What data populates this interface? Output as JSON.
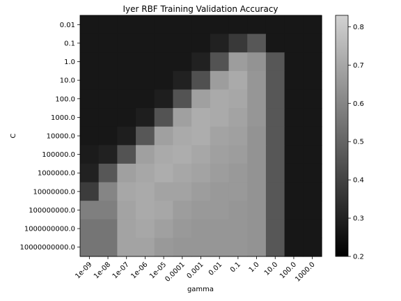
{
  "chart_data": {
    "type": "heatmap",
    "title": "Iyer RBF Training Validation Accuracy",
    "xlabel": "gamma",
    "ylabel": "C",
    "x_categories": [
      "1e-09",
      "1e-08",
      "1e-07",
      "1e-06",
      "1e-05",
      "0.0001",
      "0.001",
      "0.01",
      "0.1",
      "1.0",
      "10.0",
      "100.0",
      "1000.0"
    ],
    "y_categories": [
      "0.01",
      "0.1",
      "1.0",
      "10.0",
      "100.0",
      "1000.0",
      "10000.0",
      "100000.0",
      "1000000.0",
      "10000000.0",
      "100000000.0",
      "1000000000.0",
      "10000000000.0"
    ],
    "values": [
      [
        0.27,
        0.27,
        0.27,
        0.27,
        0.27,
        0.27,
        0.27,
        0.27,
        0.27,
        0.27,
        0.27,
        0.27,
        0.27
      ],
      [
        0.27,
        0.27,
        0.27,
        0.27,
        0.27,
        0.27,
        0.27,
        0.3,
        0.37,
        0.46,
        0.27,
        0.27,
        0.27
      ],
      [
        0.27,
        0.27,
        0.27,
        0.27,
        0.27,
        0.27,
        0.3,
        0.45,
        0.67,
        0.64,
        0.46,
        0.27,
        0.27
      ],
      [
        0.27,
        0.27,
        0.27,
        0.27,
        0.27,
        0.3,
        0.44,
        0.67,
        0.71,
        0.65,
        0.46,
        0.27,
        0.27
      ],
      [
        0.27,
        0.27,
        0.27,
        0.27,
        0.29,
        0.45,
        0.68,
        0.71,
        0.7,
        0.65,
        0.46,
        0.27,
        0.27
      ],
      [
        0.27,
        0.27,
        0.27,
        0.29,
        0.45,
        0.68,
        0.72,
        0.71,
        0.69,
        0.65,
        0.46,
        0.27,
        0.27
      ],
      [
        0.27,
        0.27,
        0.29,
        0.46,
        0.68,
        0.71,
        0.72,
        0.69,
        0.68,
        0.64,
        0.46,
        0.27,
        0.27
      ],
      [
        0.28,
        0.3,
        0.45,
        0.68,
        0.71,
        0.72,
        0.7,
        0.68,
        0.67,
        0.64,
        0.46,
        0.27,
        0.27
      ],
      [
        0.3,
        0.46,
        0.68,
        0.7,
        0.72,
        0.7,
        0.69,
        0.67,
        0.66,
        0.64,
        0.46,
        0.27,
        0.27
      ],
      [
        0.38,
        0.6,
        0.7,
        0.71,
        0.69,
        0.69,
        0.67,
        0.66,
        0.66,
        0.64,
        0.46,
        0.27,
        0.27
      ],
      [
        0.58,
        0.58,
        0.69,
        0.71,
        0.7,
        0.67,
        0.66,
        0.66,
        0.65,
        0.64,
        0.46,
        0.27,
        0.27
      ],
      [
        0.55,
        0.55,
        0.69,
        0.7,
        0.68,
        0.66,
        0.65,
        0.65,
        0.65,
        0.64,
        0.46,
        0.27,
        0.27
      ],
      [
        0.55,
        0.55,
        0.69,
        0.69,
        0.66,
        0.65,
        0.65,
        0.65,
        0.65,
        0.64,
        0.46,
        0.27,
        0.27
      ]
    ],
    "vmin": 0.2,
    "vmax": 0.83,
    "colormap": "gray",
    "colorbar_ticks": [
      0.2,
      0.3,
      0.4,
      0.5,
      0.6,
      0.7,
      0.8
    ],
    "grid": false
  }
}
